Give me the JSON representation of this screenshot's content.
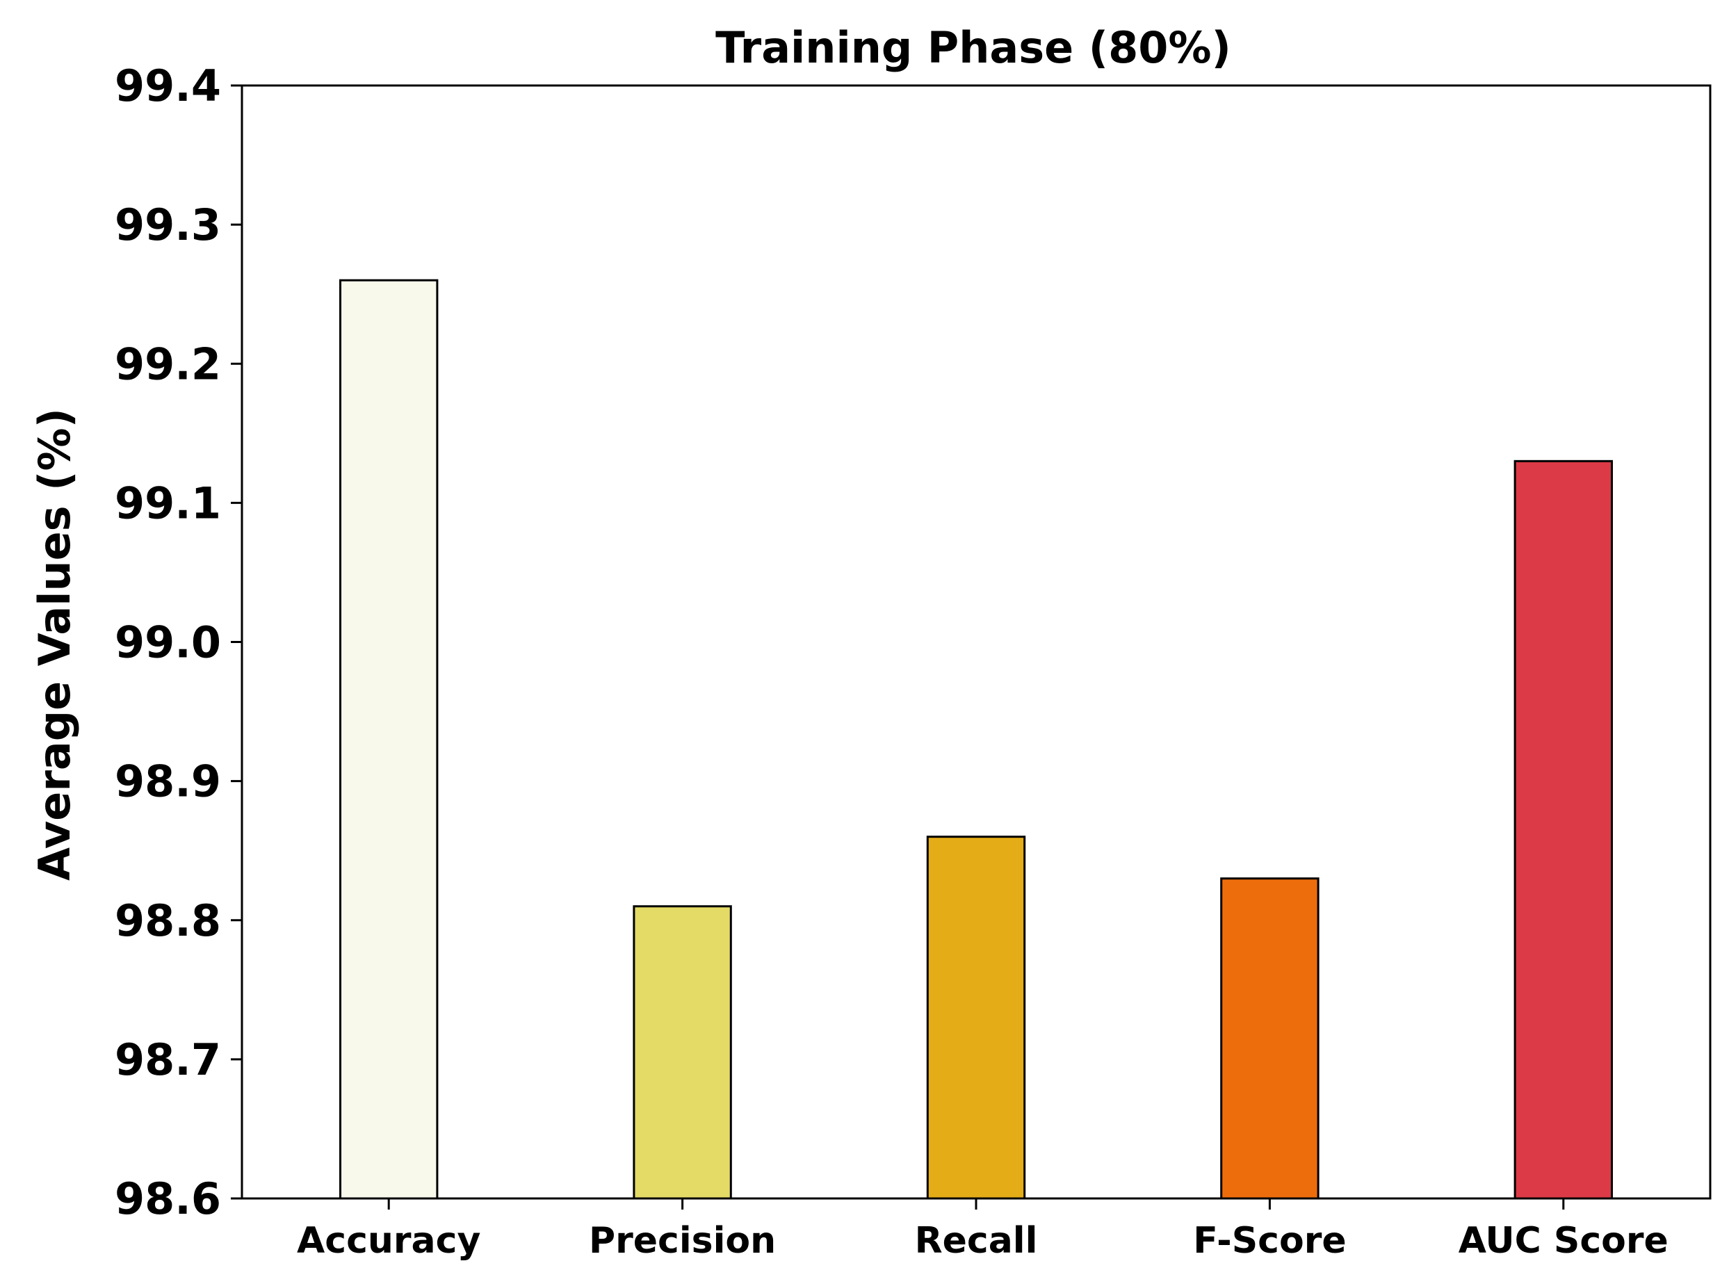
{
  "chart_data": {
    "type": "bar",
    "title": "Training Phase (80%)",
    "xlabel": "",
    "ylabel": "Average Values (%)",
    "categories": [
      "Accuracy",
      "Precision",
      "Recall",
      "F-Score",
      "AUC Score"
    ],
    "values": [
      99.26,
      98.81,
      98.86,
      98.83,
      99.13
    ],
    "colors": [
      "#f8f9ea",
      "#e4db66",
      "#e4ad17",
      "#ed6d0c",
      "#dc3a46"
    ],
    "ylim": [
      98.6,
      99.4
    ],
    "yticks": [
      "98.6",
      "98.7",
      "98.8",
      "98.9",
      "99.0",
      "99.1",
      "99.2",
      "99.3",
      "99.4"
    ],
    "grid": false,
    "legend": "none"
  }
}
